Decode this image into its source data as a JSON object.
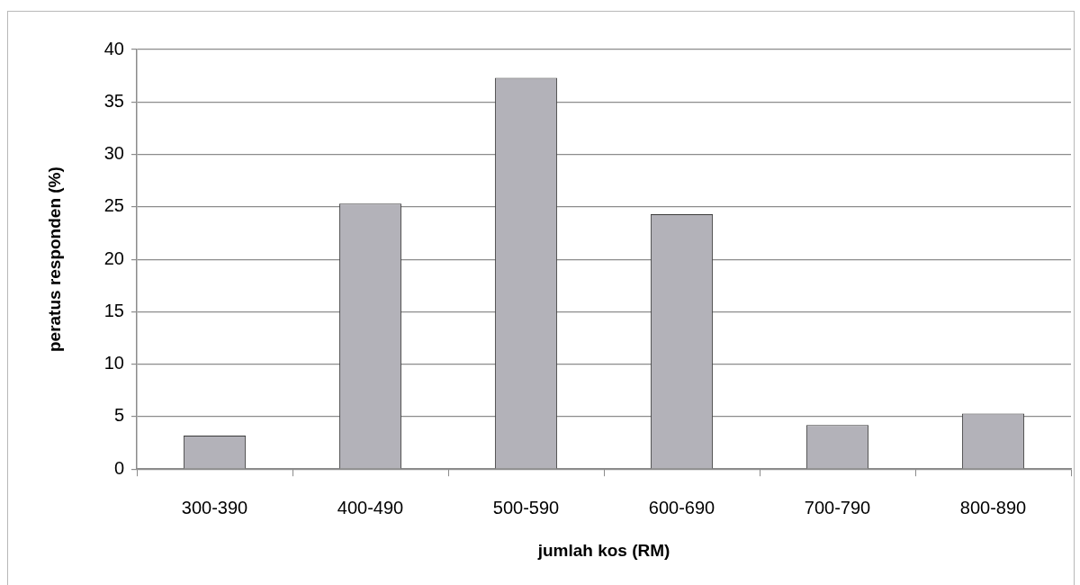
{
  "chart_data": {
    "type": "bar",
    "xlabel": "jumlah kos (RM)",
    "ylabel": "peratus responden (%)",
    "categories": [
      "300-390",
      "400-490",
      "500-590",
      "600-690",
      "700-790",
      "800-890"
    ],
    "values": [
      3.2,
      25.3,
      37.3,
      24.3,
      4.2,
      5.3
    ],
    "color": "#b3b2b9",
    "ylim": [
      0,
      40
    ],
    "yticks": [
      0,
      5,
      10,
      15,
      20,
      25,
      30,
      35,
      40
    ],
    "grid": "y"
  }
}
